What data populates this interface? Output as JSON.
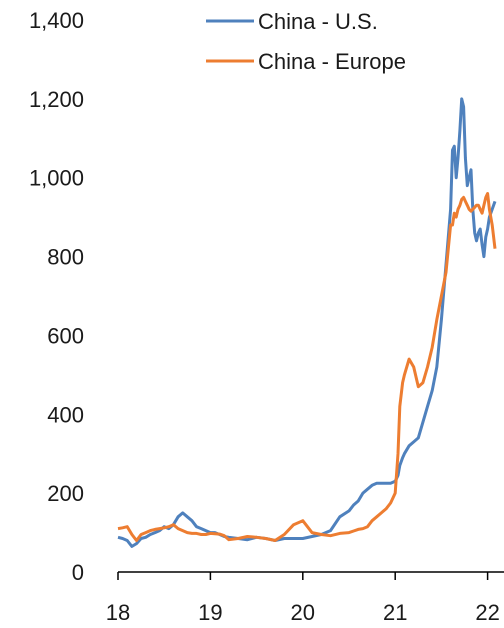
{
  "chart_data": {
    "type": "line",
    "title": "",
    "xlabel": "",
    "ylabel": "",
    "ylim": [
      0,
      1400
    ],
    "xlim": [
      18,
      22.1
    ],
    "y_ticks": [
      0,
      200,
      400,
      600,
      800,
      1000,
      1200,
      1400
    ],
    "y_tick_labels": [
      "0",
      "200",
      "400",
      "600",
      "800",
      "1,000",
      "1,200",
      "1,400"
    ],
    "x_ticks": [
      18,
      19,
      20,
      21,
      22
    ],
    "x_tick_labels": [
      "18",
      "19",
      "20",
      "21",
      "22"
    ],
    "grid": false,
    "legend": {
      "placement": "top"
    },
    "series": [
      {
        "name": "China - U.S.",
        "color": "#4f81bd",
        "x": [
          18.0,
          18.05,
          18.1,
          18.15,
          18.2,
          18.25,
          18.3,
          18.35,
          18.4,
          18.45,
          18.5,
          18.55,
          18.6,
          18.65,
          18.7,
          18.75,
          18.8,
          18.85,
          18.9,
          18.95,
          19.0,
          19.05,
          19.1,
          19.15,
          19.2,
          19.3,
          19.4,
          19.5,
          19.6,
          19.7,
          19.8,
          19.9,
          20.0,
          20.1,
          20.2,
          20.3,
          20.4,
          20.5,
          20.55,
          20.6,
          20.65,
          20.7,
          20.75,
          20.8,
          20.85,
          20.9,
          20.95,
          21.0,
          21.03,
          21.05,
          21.08,
          21.1,
          21.15,
          21.2,
          21.25,
          21.3,
          21.35,
          21.4,
          21.45,
          21.5,
          21.55,
          21.6,
          21.62,
          21.64,
          21.66,
          21.68,
          21.7,
          21.72,
          21.74,
          21.76,
          21.78,
          21.8,
          21.82,
          21.84,
          21.86,
          21.88,
          21.9,
          21.92,
          21.94,
          21.96,
          21.98,
          22.0,
          22.02,
          22.05,
          22.08
        ],
        "values": [
          88,
          85,
          80,
          65,
          72,
          85,
          88,
          95,
          100,
          105,
          115,
          110,
          120,
          140,
          150,
          140,
          130,
          115,
          110,
          105,
          100,
          100,
          95,
          90,
          88,
          85,
          82,
          88,
          85,
          80,
          85,
          85,
          85,
          90,
          95,
          105,
          140,
          155,
          170,
          180,
          200,
          210,
          220,
          225,
          225,
          225,
          225,
          230,
          245,
          270,
          290,
          300,
          320,
          330,
          340,
          380,
          420,
          460,
          520,
          640,
          780,
          920,
          1070,
          1080,
          1000,
          1050,
          1120,
          1200,
          1180,
          1050,
          980,
          1000,
          1020,
          920,
          860,
          840,
          860,
          870,
          830,
          800,
          850,
          870,
          900,
          920,
          940
        ]
      },
      {
        "name": "China - Europe",
        "color": "#ed7d31",
        "x": [
          18.0,
          18.05,
          18.1,
          18.15,
          18.2,
          18.25,
          18.3,
          18.35,
          18.4,
          18.45,
          18.5,
          18.55,
          18.6,
          18.65,
          18.7,
          18.75,
          18.8,
          18.85,
          18.9,
          18.95,
          19.0,
          19.05,
          19.1,
          19.15,
          19.2,
          19.3,
          19.4,
          19.5,
          19.6,
          19.7,
          19.8,
          19.9,
          20.0,
          20.1,
          20.2,
          20.3,
          20.4,
          20.5,
          20.55,
          20.6,
          20.65,
          20.7,
          20.75,
          20.8,
          20.85,
          20.9,
          20.95,
          21.0,
          21.03,
          21.05,
          21.08,
          21.1,
          21.15,
          21.2,
          21.25,
          21.3,
          21.35,
          21.4,
          21.45,
          21.5,
          21.55,
          21.6,
          21.62,
          21.64,
          21.66,
          21.68,
          21.7,
          21.72,
          21.74,
          21.76,
          21.78,
          21.8,
          21.82,
          21.84,
          21.86,
          21.88,
          21.9,
          21.92,
          21.94,
          21.96,
          21.98,
          22.0,
          22.02,
          22.05,
          22.08
        ],
        "values": [
          110,
          112,
          115,
          95,
          80,
          95,
          100,
          105,
          108,
          110,
          112,
          115,
          120,
          110,
          105,
          100,
          98,
          98,
          95,
          95,
          98,
          97,
          96,
          92,
          82,
          85,
          90,
          88,
          85,
          80,
          95,
          120,
          130,
          100,
          95,
          92,
          98,
          100,
          104,
          108,
          110,
          115,
          130,
          140,
          150,
          160,
          175,
          200,
          300,
          420,
          480,
          500,
          540,
          520,
          470,
          480,
          520,
          570,
          640,
          700,
          760,
          880,
          880,
          910,
          900,
          920,
          930,
          945,
          950,
          940,
          930,
          920,
          915,
          920,
          925,
          930,
          930,
          920,
          910,
          930,
          950,
          960,
          920,
          880,
          820
        ]
      }
    ]
  }
}
